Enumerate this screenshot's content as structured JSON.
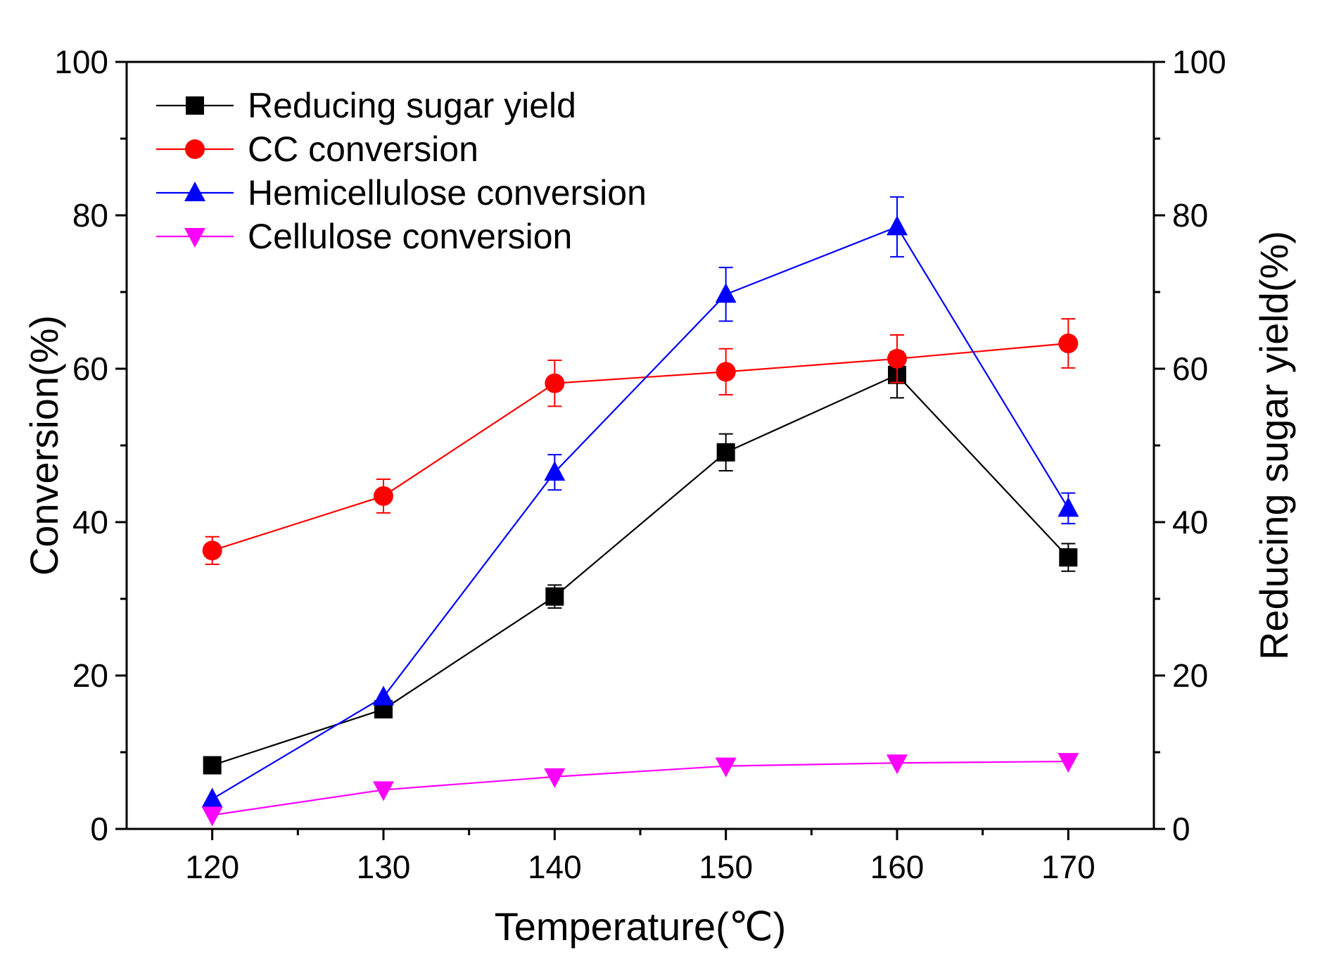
{
  "chart_data": {
    "type": "line",
    "x": [
      120,
      130,
      140,
      150,
      160,
      170
    ],
    "xlabel": "Temperature(℃)",
    "ylabel_left": "Conversion(%)",
    "ylabel_right": "Reducing sugar yield(%)",
    "xlim": [
      115,
      175
    ],
    "ylim": [
      0,
      100
    ],
    "xticks": [
      120,
      130,
      140,
      150,
      160,
      170
    ],
    "yticks": [
      0,
      20,
      40,
      60,
      80,
      100
    ],
    "legend_position": "top-left",
    "grid": false,
    "series": [
      {
        "name": "Reducing sugar yield",
        "color": "#000000",
        "marker": "square",
        "axis": "right",
        "values": [
          8.3,
          15.6,
          30.3,
          49.1,
          59.2,
          35.4
        ],
        "errors": [
          0,
          0,
          1.5,
          2.4,
          3.0,
          1.8
        ]
      },
      {
        "name": "CC conversion",
        "color": "#ff0000",
        "marker": "circle",
        "axis": "left",
        "values": [
          36.3,
          43.4,
          58.1,
          59.6,
          61.3,
          63.3
        ],
        "errors": [
          1.8,
          2.2,
          3.0,
          3.0,
          3.1,
          3.2
        ]
      },
      {
        "name": "Hemicellulose conversion",
        "color": "#0000ff",
        "marker": "triangle-up",
        "axis": "left",
        "values": [
          3.9,
          17.2,
          46.5,
          69.7,
          78.5,
          41.8
        ],
        "errors": [
          0,
          0,
          2.3,
          3.5,
          3.9,
          2.0
        ]
      },
      {
        "name": "Cellulose conversion",
        "color": "#ff00ff",
        "marker": "triangle-down",
        "axis": "left",
        "values": [
          1.8,
          5.1,
          6.8,
          8.2,
          8.6,
          8.8
        ],
        "errors": [
          0,
          0,
          0,
          0,
          0,
          0
        ]
      }
    ]
  }
}
